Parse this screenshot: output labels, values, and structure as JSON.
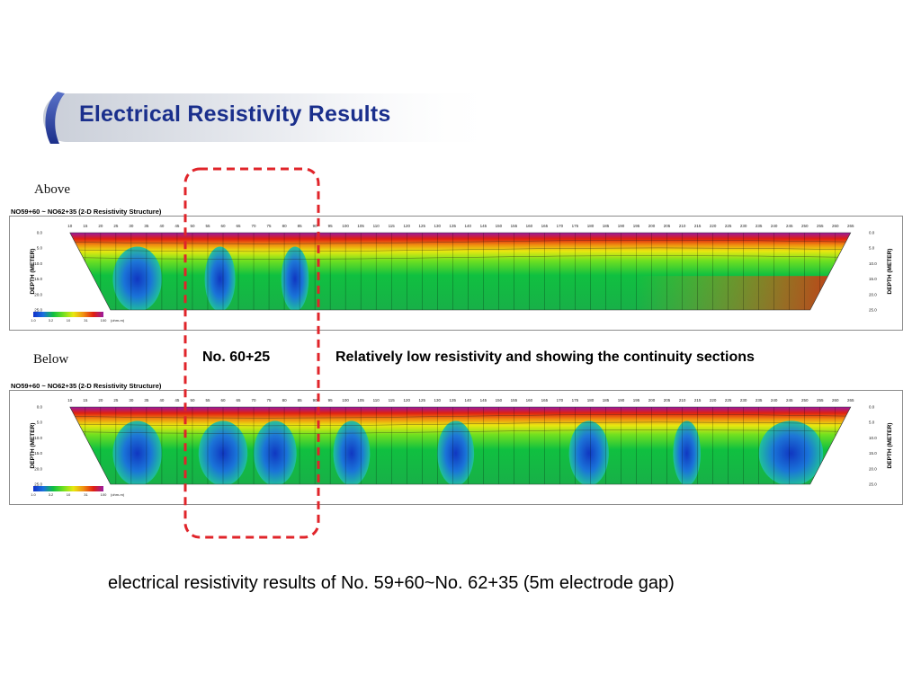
{
  "slide": {
    "title": "Electrical Resistivity Results",
    "caption": "electrical resistivity results of No. 59+60~No. 62+35 (5m electrode gap)"
  },
  "labels": {
    "above": "Above",
    "below": "Below",
    "callout_station": "No. 60+25",
    "callout_note": "Relatively low resistivity and showing the continuity sections"
  },
  "colors": {
    "title": "#1a2f8c",
    "highlight_box": "#e0242a",
    "panel_border": "#8c8c8c",
    "scale": [
      "#1030c8",
      "#1a70e0",
      "#10c040",
      "#70e020",
      "#e8e810",
      "#f09010",
      "#e02010",
      "#9a1aa0"
    ]
  },
  "chart_data": [
    {
      "type": "heatmap",
      "panel": "Above",
      "title": "NO59+60 ~ NO62+35 (2-D Resistivity Structure)",
      "x_ticks": [
        "10",
        "15",
        "20",
        "25",
        "30",
        "35",
        "40",
        "45",
        "50",
        "55",
        "60",
        "65",
        "70",
        "75",
        "80",
        "85",
        "90",
        "95",
        "100",
        "105",
        "110",
        "115",
        "120",
        "125",
        "130",
        "135",
        "140",
        "145",
        "150",
        "155",
        "160",
        "165",
        "170",
        "175",
        "180",
        "185",
        "190",
        "195",
        "200",
        "205",
        "210",
        "215",
        "220",
        "225",
        "230",
        "235",
        "240",
        "245",
        "250",
        "255",
        "260",
        "265"
      ],
      "y_ticks": [
        "0.0",
        "5.0",
        "10.0",
        "15.0",
        "20.0",
        "25.0"
      ],
      "ylabel": "DEPTH (METER)",
      "ylim": [
        0,
        25
      ],
      "colorbar": {
        "ticks": [
          "1.0",
          "3.2",
          "10",
          "31",
          "100"
        ],
        "unit": "(ohm-m)"
      },
      "low_resistivity_zones_x": [
        [
          24,
          40
        ],
        [
          54,
          64
        ],
        [
          79,
          88
        ]
      ]
    },
    {
      "type": "heatmap",
      "panel": "Below",
      "title": "NO59+60 ~ NO62+35 (2-D Resistivity Structure)",
      "x_ticks": [
        "10",
        "15",
        "20",
        "25",
        "30",
        "35",
        "40",
        "45",
        "50",
        "55",
        "60",
        "65",
        "70",
        "75",
        "80",
        "85",
        "90",
        "95",
        "100",
        "105",
        "110",
        "115",
        "120",
        "125",
        "130",
        "135",
        "140",
        "145",
        "150",
        "155",
        "160",
        "165",
        "170",
        "175",
        "180",
        "185",
        "190",
        "195",
        "200",
        "205",
        "210",
        "215",
        "220",
        "225",
        "230",
        "235",
        "240",
        "245",
        "250",
        "255",
        "260",
        "265"
      ],
      "y_ticks": [
        "0.0",
        "5.0",
        "10.0",
        "15.0",
        "20.0",
        "25.0"
      ],
      "ylabel": "DEPTH (METER)",
      "ylim": [
        0,
        25
      ],
      "colorbar": {
        "ticks": [
          "1.0",
          "3.2",
          "10",
          "31",
          "100"
        ],
        "unit": "(ohm-m)"
      },
      "low_resistivity_zones_x": [
        [
          24,
          40
        ],
        [
          52,
          68
        ],
        [
          70,
          84
        ],
        [
          96,
          108
        ],
        [
          130,
          142
        ],
        [
          173,
          186
        ],
        [
          207,
          216
        ],
        [
          235,
          256
        ]
      ]
    }
  ]
}
